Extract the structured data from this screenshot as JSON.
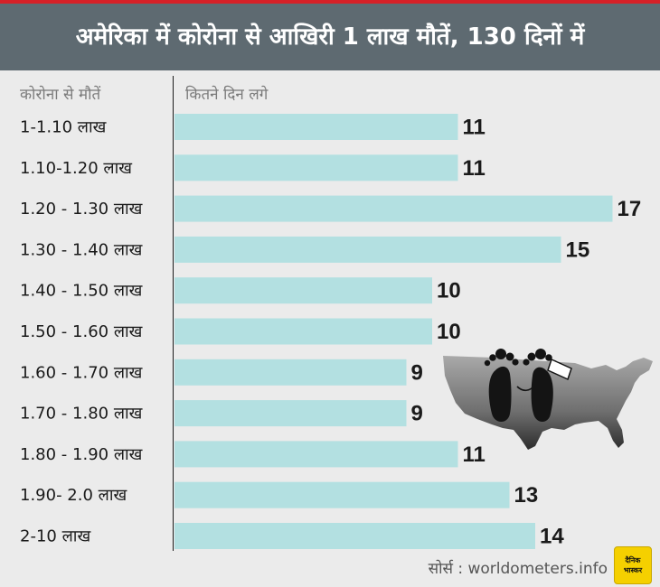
{
  "title": "अमेरिका में कोरोना से आखिरी 1 लाख मौतें, 130 दिनों में",
  "headers": {
    "category": "कोरोना से मौतें",
    "value": "कितने दिन लगे"
  },
  "source": "सोर्स : worldometers.info",
  "logo": {
    "line1": "दैनिक",
    "line2": "भास्कर"
  },
  "colors": {
    "header_bg": "#5e6a71",
    "accent_line": "#d62027",
    "bar": "#b3e0e1",
    "background": "#ebebeb"
  },
  "illustration": {
    "icons": [
      "usa-map-icon",
      "footprints-icon"
    ]
  },
  "chart_data": {
    "type": "bar",
    "orientation": "horizontal",
    "title": "अमेरिका में कोरोना से आखिरी 1 लाख मौतें, 130 दिनों में",
    "xlabel": "कितने दिन लगे",
    "ylabel": "कोरोना से मौतें",
    "categories": [
      "1-1.10 लाख",
      "1.10-1.20 लाख",
      "1.20 - 1.30 लाख",
      "1.30 - 1.40 लाख",
      "1.40 - 1.50 लाख",
      "1.50 - 1.60 लाख",
      "1.60 - 1.70 लाख",
      "1.70 - 1.80 लाख",
      "1.80 - 1.90 लाख",
      "1.90- 2.0 लाख",
      "2-10 लाख"
    ],
    "values": [
      11,
      11,
      17,
      15,
      10,
      10,
      9,
      9,
      11,
      13,
      14
    ],
    "grid": false,
    "legend": "none",
    "data_labels": true
  }
}
